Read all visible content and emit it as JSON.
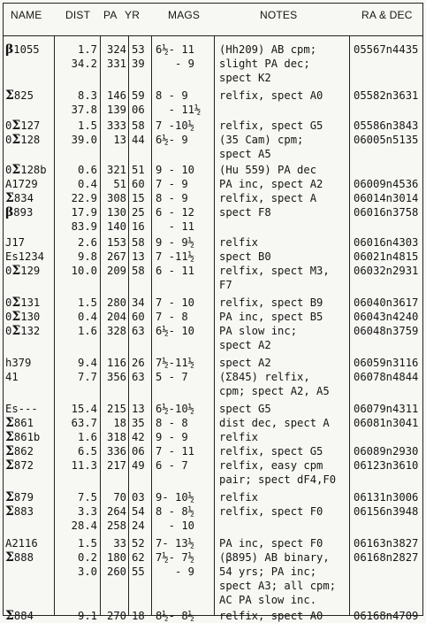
{
  "headers": {
    "name": "NAME",
    "dist": "DIST",
    "pa": "PA",
    "yr": "YR",
    "mags": "MAGS",
    "notes": "NOTES",
    "radec": "RA & DEC"
  },
  "rows": [
    {
      "name": "β1055",
      "dist": "1.7",
      "pa": "324",
      "yr": "53",
      "mags": "6½- 11",
      "notes": "(Hh209) AB cpm;",
      "radec": "05567n4435"
    },
    {
      "name": "",
      "dist": "34.2",
      "pa": "331",
      "yr": "39",
      "mags": "   - 9",
      "notes": "slight PA dec;",
      "radec": ""
    },
    {
      "name": "",
      "dist": "",
      "pa": "",
      "yr": "",
      "mags": "",
      "notes": "spect K2",
      "radec": ""
    },
    {
      "name": "Σ825",
      "dist": "8.3",
      "pa": "146",
      "yr": "59",
      "mags": "8 - 9",
      "notes": "relfix, spect A0",
      "radec": "05582n3631"
    },
    {
      "name": "",
      "dist": "37.8",
      "pa": "139",
      "yr": "06",
      "mags": "  - 11½",
      "notes": "",
      "radec": ""
    },
    {
      "name": "0Σ127",
      "dist": "1.5",
      "pa": "333",
      "yr": "58",
      "mags": "7 -10½",
      "notes": "relfix, spect G5",
      "radec": "05586n3843"
    },
    {
      "name": "0Σ128",
      "dist": "39.0",
      "pa": "13",
      "yr": "44",
      "mags": "6½- 9",
      "notes": "(35 Cam) cpm;",
      "radec": "06005n5135"
    },
    {
      "name": "",
      "dist": "",
      "pa": "",
      "yr": "",
      "mags": "",
      "notes": "spect A5",
      "radec": ""
    },
    {
      "name": "0Σ128b",
      "dist": "0.6",
      "pa": "321",
      "yr": "51",
      "mags": "9 - 10",
      "notes": "(Hu 559) PA dec",
      "radec": ""
    },
    {
      "name": "A1729",
      "dist": "0.4",
      "pa": "51",
      "yr": "60",
      "mags": "7 - 9",
      "notes": "PA inc, spect A2",
      "radec": "06009n4536"
    },
    {
      "name": "Σ834",
      "dist": "22.9",
      "pa": "308",
      "yr": "15",
      "mags": "8 - 9",
      "notes": "relfix, spect A",
      "radec": "06014n3014"
    },
    {
      "name": "β893",
      "dist": "17.9",
      "pa": "130",
      "yr": "25",
      "mags": "6 - 12",
      "notes": "spect F8",
      "radec": "06016n3758"
    },
    {
      "name": "",
      "dist": "83.9",
      "pa": "140",
      "yr": "16",
      "mags": "  - 11",
      "notes": "",
      "radec": ""
    },
    {
      "name": "J17",
      "dist": "2.6",
      "pa": "153",
      "yr": "58",
      "mags": "9 - 9½",
      "notes": "relfix",
      "radec": "06016n4303"
    },
    {
      "name": "Es1234",
      "dist": "9.8",
      "pa": "267",
      "yr": "13",
      "mags": "7 -11½",
      "notes": "spect B0",
      "radec": "06021n4815"
    },
    {
      "name": "0Σ129",
      "dist": "10.0",
      "pa": "209",
      "yr": "58",
      "mags": "6 - 11",
      "notes": "relfix, spect M3,",
      "radec": "06032n2931"
    },
    {
      "name": "",
      "dist": "",
      "pa": "",
      "yr": "",
      "mags": "",
      "notes": "F7",
      "radec": ""
    },
    {
      "name": "0Σ131",
      "dist": "1.5",
      "pa": "280",
      "yr": "34",
      "mags": "7 - 10",
      "notes": "relfix, spect B9",
      "radec": "06040n3617"
    },
    {
      "name": "0Σ130",
      "dist": "0.4",
      "pa": "204",
      "yr": "60",
      "mags": "7 - 8",
      "notes": "PA inc, spect B5",
      "radec": "06043n4240"
    },
    {
      "name": "0Σ132",
      "dist": "1.6",
      "pa": "328",
      "yr": "63",
      "mags": "6½- 10",
      "notes": "PA slow inc;",
      "radec": "06048n3759"
    },
    {
      "name": "",
      "dist": "",
      "pa": "",
      "yr": "",
      "mags": "",
      "notes": "spect A2",
      "radec": ""
    },
    {
      "name": "h379",
      "dist": "9.4",
      "pa": "116",
      "yr": "26",
      "mags": "7½-11½",
      "notes": "spect A2",
      "radec": "06059n3116"
    },
    {
      "name": "41",
      "dist": "7.7",
      "pa": "356",
      "yr": "63",
      "mags": "5 - 7",
      "notes": "(Σ845) relfix,",
      "radec": "06078n4844"
    },
    {
      "name": "",
      "dist": "",
      "pa": "",
      "yr": "",
      "mags": "",
      "notes": "cpm; spect A2, A5",
      "radec": ""
    },
    {
      "name": "Es---",
      "dist": "15.4",
      "pa": "215",
      "yr": "13",
      "mags": "6½-10½",
      "notes": "spect G5",
      "radec": "06079n4311"
    },
    {
      "name": "Σ861",
      "dist": "63.7",
      "pa": "18",
      "yr": "35",
      "mags": "8 - 8",
      "notes": "dist dec, spect A",
      "radec": "06081n3041"
    },
    {
      "name": "Σ861b",
      "dist": "1.6",
      "pa": "318",
      "yr": "42",
      "mags": "9 - 9",
      "notes": "relfix",
      "radec": ""
    },
    {
      "name": "Σ862",
      "dist": "6.5",
      "pa": "336",
      "yr": "06",
      "mags": "7 - 11",
      "notes": "relfix, spect G5",
      "radec": "06089n2930"
    },
    {
      "name": "Σ872",
      "dist": "11.3",
      "pa": "217",
      "yr": "49",
      "mags": "6 - 7",
      "notes": "relfix, easy cpm",
      "radec": "06123n3610"
    },
    {
      "name": "",
      "dist": "",
      "pa": "",
      "yr": "",
      "mags": "",
      "notes": "pair; spect dF4,F0",
      "radec": ""
    },
    {
      "name": "Σ879",
      "dist": "7.5",
      "pa": "70",
      "yr": "03",
      "mags": "9- 10½",
      "notes": "relfix",
      "radec": "06131n3006"
    },
    {
      "name": "Σ883",
      "dist": "3.3",
      "pa": "264",
      "yr": "54",
      "mags": "8 - 8½",
      "notes": "relfix, spect F0",
      "radec": "06156n3948"
    },
    {
      "name": "",
      "dist": "28.4",
      "pa": "258",
      "yr": "24",
      "mags": "  - 10",
      "notes": "",
      "radec": ""
    },
    {
      "name": "A2116",
      "dist": "1.5",
      "pa": "33",
      "yr": "52",
      "mags": "7- 13½",
      "notes": "PA inc, spect F0",
      "radec": "06163n3827"
    },
    {
      "name": "Σ888",
      "dist": "0.2",
      "pa": "180",
      "yr": "62",
      "mags": "7½- 7½",
      "notes": "(β895) AB binary,",
      "radec": "06168n2827"
    },
    {
      "name": "",
      "dist": "3.0",
      "pa": "260",
      "yr": "55",
      "mags": "   - 9",
      "notes": "54 yrs; PA inc;",
      "radec": ""
    },
    {
      "name": "",
      "dist": "",
      "pa": "",
      "yr": "",
      "mags": "",
      "notes": "spect A3; all cpm;",
      "radec": ""
    },
    {
      "name": "",
      "dist": "",
      "pa": "",
      "yr": "",
      "mags": "",
      "notes": "AC PA slow inc.",
      "radec": ""
    },
    {
      "name": "Σ884",
      "dist": "9.1",
      "pa": "270",
      "yr": "18",
      "mags": "8½- 8½",
      "notes": "relfix, spect A0",
      "radec": "06168n4709"
    }
  ]
}
